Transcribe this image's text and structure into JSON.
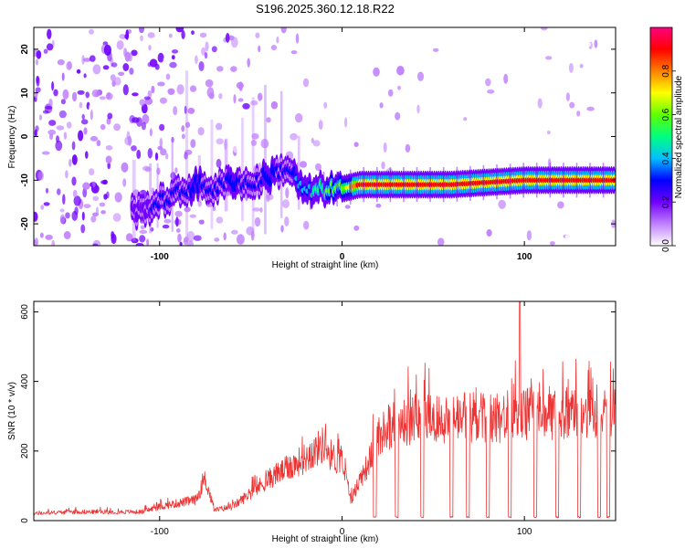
{
  "title": "S196.2025.360.12.18.R22",
  "chart_data": [
    {
      "type": "heatmap",
      "xlabel": "Height of straight line (km)",
      "ylabel": "Frequency (Hz)",
      "xlim": [
        -169,
        150
      ],
      "ylim": [
        -25,
        25
      ],
      "xticks": [
        -100,
        0,
        100
      ],
      "xtick_labels": [
        "-100",
        "0",
        "100"
      ],
      "yticks": [
        -20,
        -10,
        0,
        10,
        20
      ],
      "ytick_labels": [
        "-20",
        "-10",
        "0",
        "10",
        "20"
      ],
      "colorbar": {
        "label": "Normalized spectral amplitude",
        "range": [
          0,
          1
        ],
        "ticks": [
          0,
          0.2,
          0.4,
          0.6,
          0.8
        ],
        "tick_labels": [
          "0.0",
          "0.2",
          "0.4",
          "0.6",
          "0.8"
        ],
        "colors": [
          "#ffffff",
          "#c080ff",
          "#7000ff",
          "#0000ff",
          "#00c0ff",
          "#00ff80",
          "#60ff00",
          "#ffff00",
          "#ff8000",
          "#ff0000",
          "#ff0080"
        ]
      },
      "ridge": {
        "x": [
          -110,
          -100,
          -90,
          -80,
          -70,
          -60,
          -50,
          -40,
          -30,
          -20,
          -10,
          0,
          10,
          30,
          60,
          100,
          150
        ],
        "y": [
          -17,
          -15,
          -13,
          -11,
          -12,
          -10,
          -11,
          -9,
          -7,
          -13,
          -12,
          -12,
          -11,
          -11,
          -11,
          -10,
          -10
        ],
        "peak_amplitude": [
          0.2,
          0.3,
          0.3,
          0.35,
          0.3,
          0.35,
          0.3,
          0.35,
          0.3,
          0.4,
          0.55,
          0.6,
          0.9,
          0.9,
          0.9,
          0.95,
          0.9
        ]
      }
    },
    {
      "type": "line",
      "xlabel": "Height of straight line (km)",
      "ylabel": "SNR (10 * v/v)",
      "xlim": [
        -169,
        150
      ],
      "ylim": [
        0,
        630
      ],
      "xticks": [
        -100,
        0,
        100
      ],
      "xtick_labels": [
        "-100",
        "0",
        "100"
      ],
      "yticks": [
        0,
        200,
        400,
        600
      ],
      "ytick_labels": [
        "0",
        "200",
        "400",
        "600"
      ],
      "color": "#ee3333",
      "series": [
        {
          "name": "SNR",
          "x": [
            -169,
            -150,
            -130,
            -110,
            -100,
            -90,
            -80,
            -75,
            -70,
            -60,
            -50,
            -40,
            -30,
            -20,
            -15,
            -10,
            -5,
            0,
            5,
            10,
            15,
            20,
            25,
            30,
            40,
            50,
            60,
            70,
            80,
            90,
            95,
            100,
            105,
            110,
            120,
            130,
            140,
            150
          ],
          "y": [
            20,
            25,
            25,
            25,
            40,
            50,
            60,
            120,
            30,
            40,
            80,
            120,
            150,
            180,
            200,
            220,
            180,
            170,
            60,
            120,
            170,
            250,
            270,
            280,
            290,
            295,
            290,
            300,
            290,
            300,
            320,
            300,
            320,
            300,
            310,
            300,
            300,
            310
          ]
        }
      ],
      "dropouts_x": [
        18,
        30,
        44,
        60,
        69,
        80,
        92,
        106,
        118,
        130,
        141,
        146
      ],
      "dropout_level": 8,
      "spike_x": [
        97.5
      ],
      "spike_y": [
        630
      ]
    }
  ]
}
